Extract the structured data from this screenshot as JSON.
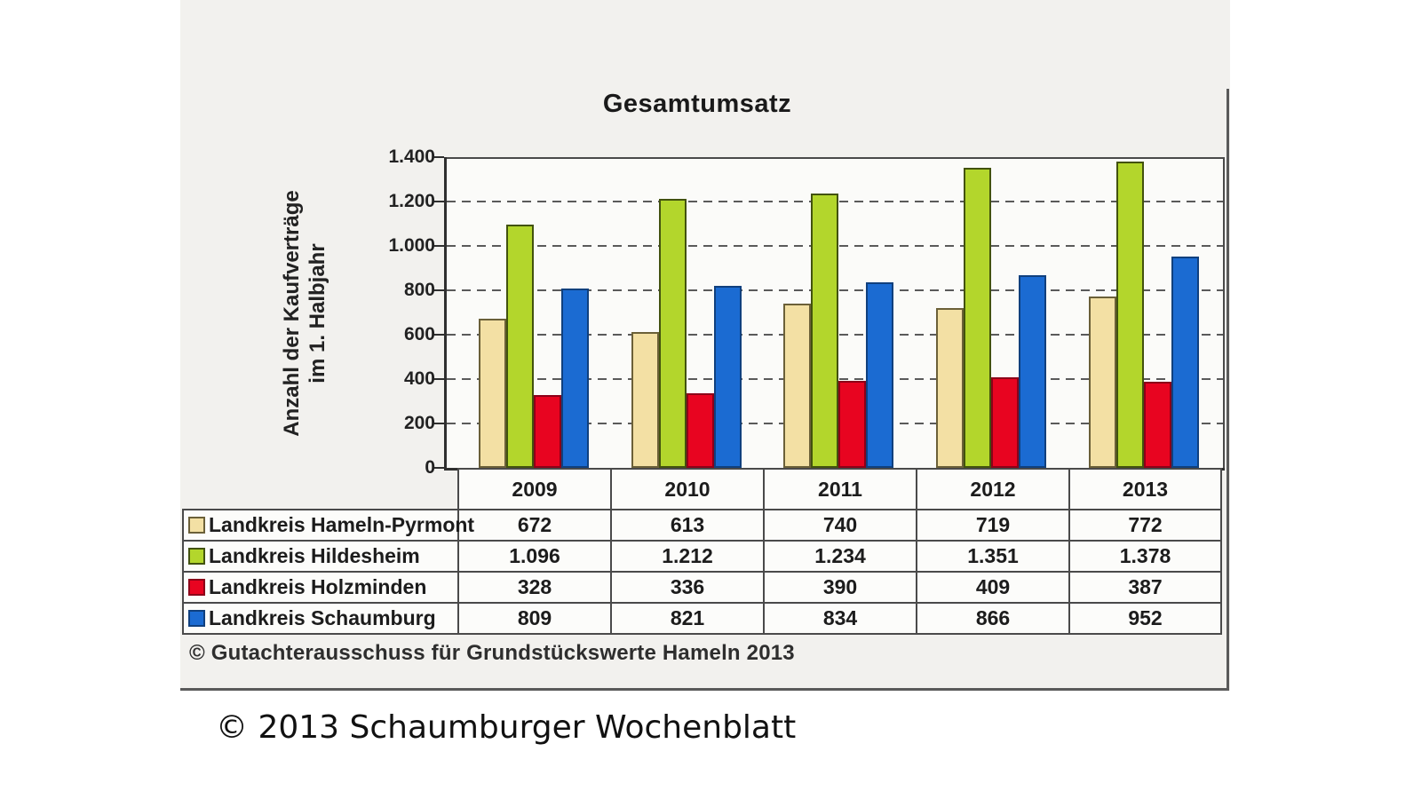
{
  "figure": {
    "title": "Gesamtumsatz",
    "y_axis_label": [
      "Anzahl der Kaufverträge",
      "im 1. Halbjahr"
    ],
    "source_note": "© Gutachterausschuss für Grundstückswerte Hameln 2013"
  },
  "caption": "© 2013 Schaumburger Wochenblatt",
  "chart_data": {
    "type": "bar",
    "title": "Gesamtumsatz",
    "ylabel": "Anzahl der Kaufverträge im 1. Halbjahr",
    "categories": [
      "2009",
      "2010",
      "2011",
      "2012",
      "2013"
    ],
    "series": [
      {
        "name": "Landkreis Hameln-Pyrmont",
        "values": [
          672,
          613,
          740,
          719,
          772
        ],
        "values_display": [
          "672",
          "613",
          "740",
          "719",
          "772"
        ],
        "color": "#f3e0a4",
        "border_color": "#6b6038"
      },
      {
        "name": "Landkreis Hildesheim",
        "values": [
          1096,
          1212,
          1234,
          1351,
          1378
        ],
        "values_display": [
          "1.096",
          "1.212",
          "1.234",
          "1.351",
          "1.378"
        ],
        "color": "#b3d62c",
        "border_color": "#42520e"
      },
      {
        "name": "Landkreis Holzminden",
        "values": [
          328,
          336,
          390,
          409,
          387
        ],
        "values_display": [
          "328",
          "336",
          "390",
          "409",
          "387"
        ],
        "color": "#e80420",
        "border_color": "#8c0018"
      },
      {
        "name": "Landkreis Schaumburg",
        "values": [
          809,
          821,
          834,
          866,
          952
        ],
        "values_display": [
          "809",
          "821",
          "834",
          "866",
          "952"
        ],
        "color": "#1b6bd2",
        "border_color": "#10407e"
      }
    ],
    "ylim": [
      0,
      1400
    ],
    "yticks": [
      0,
      200,
      400,
      600,
      800,
      1000,
      1200,
      1400
    ],
    "ytick_labels": [
      "0",
      "200",
      "400",
      "600",
      "800",
      "1.000",
      "1.200",
      "1.400"
    ],
    "grid": "dashed-horizontal",
    "legend_position": "table-first-column"
  }
}
